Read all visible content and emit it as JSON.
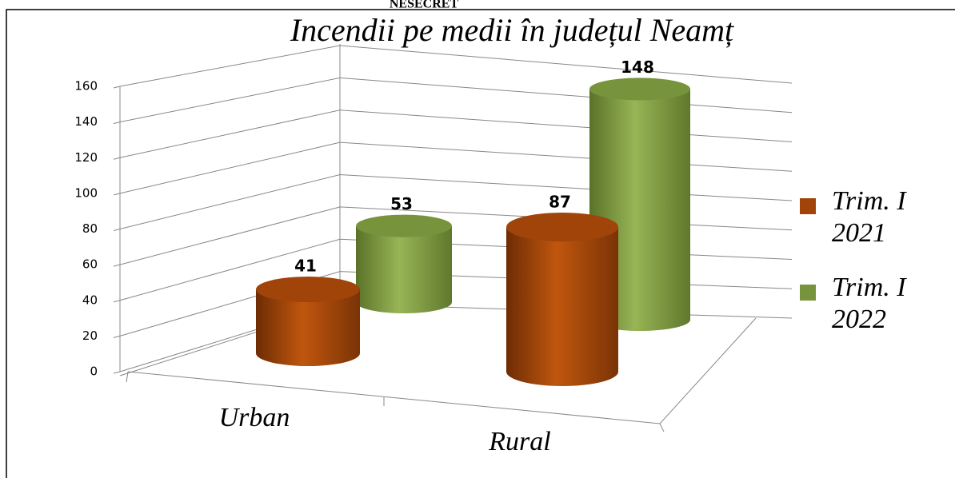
{
  "header": "NESECRET",
  "chart_data": {
    "type": "bar3d",
    "title": "Incendii pe medii  în județul Neamț",
    "categories": [
      "Urban",
      "Rural"
    ],
    "series": [
      {
        "name": "Trim. I 2021",
        "color": "#a0440a",
        "values": [
          41,
          87
        ]
      },
      {
        "name": "Trim. I 2022",
        "color": "#77933c",
        "values": [
          53,
          148
        ]
      }
    ],
    "ylim": [
      0,
      160
    ],
    "yticks": [
      0,
      20,
      40,
      60,
      80,
      100,
      120,
      140,
      160
    ],
    "grid": true,
    "legend": "right"
  }
}
